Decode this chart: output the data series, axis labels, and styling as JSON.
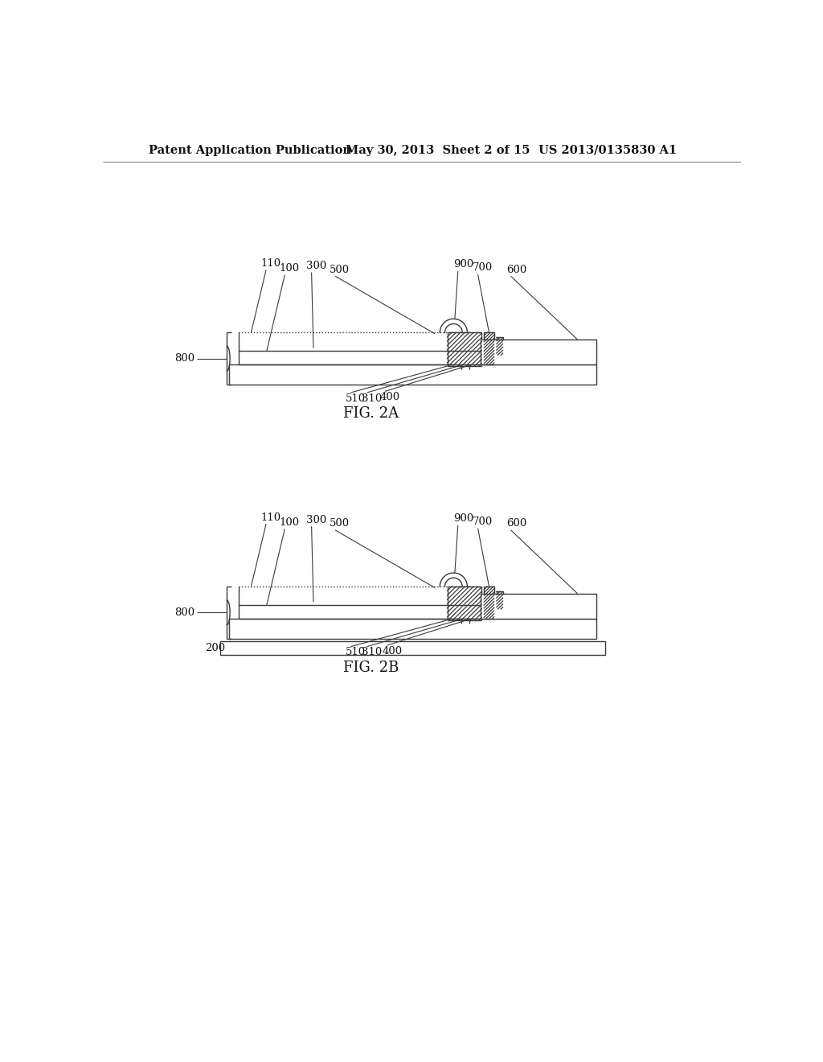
{
  "bg_color": "#ffffff",
  "header_left": "Patent Application Publication",
  "header_center": "May 30, 2013  Sheet 2 of 15",
  "header_right": "US 2013/0135830 A1",
  "fig2a_label": "FIG. 2A",
  "fig2b_label": "FIG. 2B",
  "line_color": "#3a3a3a",
  "fig_label_fontsize": 13,
  "header_fontsize": 10.5,
  "label_fontsize": 9.5
}
